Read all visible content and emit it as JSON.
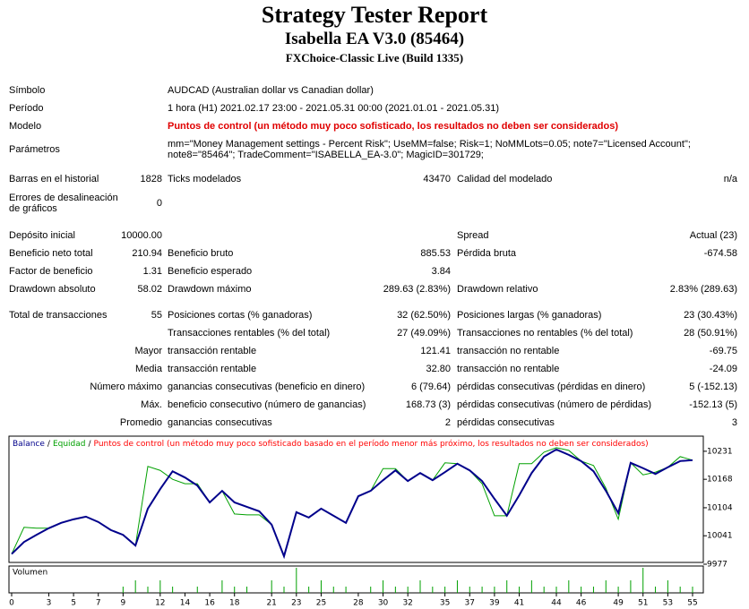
{
  "header": {
    "title": "Strategy Tester Report",
    "subtitle": "Isabella EA V3.0 (85464)",
    "build": "FXChoice-Classic Live (Build 1335)"
  },
  "summary": [
    [
      "Símbolo",
      "AUDCAD (Australian dollar vs Canadian dollar)"
    ],
    [
      "Período",
      "1 hora (H1) 2021.02.17 23:00 - 2021.05.31 00:00 (2021.01.01 - 2021.05.31)"
    ],
    [
      "Modelo",
      "Puntos de control (un método muy poco sofisticado, los resultados no deben ser considerados)"
    ],
    [
      "Parámetros",
      "mm=\"Money Management settings - Percent Risk\"; UseMM=false; Risk=1; NoMMLots=0.05; note7=\"Licensed Account\"; note8=\"85464\"; TradeComment=\"ISABELLA_EA-3.0\"; MagicID=301729;"
    ]
  ],
  "stats": [
    [
      "Barras en el historial",
      "1828",
      "Ticks modelados",
      "43470",
      "Calidad del modelado",
      "n/a"
    ],
    [
      "Errores de desalineación de gráficos",
      "0",
      null,
      null,
      null,
      null
    ],
    [
      "Depósito inicial",
      "10000.00",
      null,
      null,
      "Spread",
      "Actual (23)"
    ],
    [
      "Beneficio neto total",
      "210.94",
      "Beneficio bruto",
      "885.53",
      "Pérdida bruta",
      "-674.58"
    ],
    [
      "Factor de beneficio",
      "1.31",
      "Beneficio esperado",
      "3.84",
      null,
      null
    ],
    [
      "Drawdown absoluto",
      "58.02",
      "Drawdown máximo",
      "289.63 (2.83%)",
      "Drawdown relativo",
      "2.83% (289.63)"
    ],
    [
      "Total de transacciones",
      "55",
      "Posiciones cortas (% ganadoras)",
      "32 (62.50%)",
      "Posiciones largas (% ganadoras)",
      "23 (30.43%)"
    ],
    [
      null,
      null,
      "Transacciones rentables (% del total)",
      "27 (49.09%)",
      "Transacciones no rentables (% del total)",
      "28 (50.91%)"
    ],
    [
      null,
      "Mayor",
      "transacción rentable",
      "121.41",
      "transacción no rentable",
      "-69.75"
    ],
    [
      null,
      "Media",
      "transacción rentable",
      "32.80",
      "transacción no rentable",
      "-24.09"
    ],
    [
      null,
      "Número máximo",
      "ganancias consecutivas (beneficio en dinero)",
      "6 (79.64)",
      "pérdidas consecutivas (pérdidas en dinero)",
      "5 (-152.13)"
    ],
    [
      null,
      "Máx.",
      "beneficio consecutivo (número de ganancias)",
      "168.73 (3)",
      "pérdidas consecutivas (número de pérdidas)",
      "-152.13 (5)"
    ],
    [
      null,
      "Promedio",
      "ganancias consecutivas",
      "2",
      "pérdidas consecutivas",
      "3"
    ]
  ],
  "chart_data": {
    "type": "line",
    "legend_separator": "/",
    "note": "Puntos de control (un método muy poco sofisticado basado en el período menor más próximo, los resultados no deben ser considerados)",
    "note_color": "#ff0000",
    "x": [
      0,
      1,
      2,
      3,
      4,
      5,
      6,
      7,
      8,
      9,
      10,
      11,
      12,
      13,
      14,
      15,
      16,
      17,
      18,
      19,
      20,
      21,
      22,
      23,
      24,
      25,
      26,
      27,
      28,
      29,
      30,
      31,
      32,
      33,
      34,
      35,
      36,
      37,
      38,
      39,
      40,
      41,
      42,
      43,
      44,
      45,
      46,
      47,
      48,
      49,
      50,
      51,
      52,
      53,
      54,
      55
    ],
    "xlim": [
      0,
      55
    ],
    "xticks": [
      0,
      3,
      5,
      7,
      9,
      12,
      14,
      16,
      18,
      21,
      23,
      25,
      28,
      30,
      32,
      35,
      37,
      39,
      41,
      44,
      46,
      49,
      51,
      53,
      55
    ],
    "ylim": [
      9977,
      10265
    ],
    "yticks": [
      10231,
      10168,
      10104,
      10041,
      9977
    ],
    "series": [
      {
        "name": "Balance",
        "color": "#00008b",
        "values": [
          10000,
          10027,
          10043,
          10058,
          10070,
          10078,
          10084,
          10072,
          10054,
          10043,
          10019,
          10102,
          10146,
          10186,
          10172,
          10154,
          10116,
          10142,
          10116,
          10106,
          10096,
          10066,
          9995,
          10094,
          10082,
          10102,
          10086,
          10070,
          10130,
          10142,
          10166,
          10188,
          10164,
          10182,
          10166,
          10184,
          10203,
          10188,
          10164,
          10124,
          10086,
          10132,
          10182,
          10219,
          10235,
          10223,
          10209,
          10186,
          10142,
          10092,
          10205,
          10193,
          10180,
          10195,
          10209,
          10211
        ]
      },
      {
        "name": "Equidad",
        "color": "#00a000",
        "values": [
          10000,
          10060,
          10058,
          10058,
          10070,
          10078,
          10084,
          10072,
          10054,
          10043,
          10019,
          10197,
          10188,
          10168,
          10158,
          10158,
          10116,
          10142,
          10090,
          10088,
          10088,
          10066,
          9995,
          10094,
          10082,
          10102,
          10086,
          10070,
          10130,
          10142,
          10192,
          10192,
          10164,
          10182,
          10166,
          10205,
          10203,
          10188,
          10158,
          10086,
          10086,
          10203,
          10203,
          10229,
          10239,
          10233,
          10209,
          10199,
          10148,
          10078,
          10205,
          10178,
          10184,
          10195,
          10219,
          10211
        ]
      }
    ],
    "volume": {
      "label": "Volumen",
      "color": "#00a000",
      "ylim": [
        0,
        4
      ],
      "values": [
        0,
        0,
        0,
        0,
        0,
        0,
        0,
        0,
        0,
        1,
        2,
        1,
        2,
        1,
        0,
        1,
        0,
        2,
        1,
        1,
        0,
        2,
        1,
        4,
        1,
        2,
        1,
        1,
        0,
        1,
        2,
        1,
        1,
        2,
        1,
        1,
        2,
        1,
        1,
        1,
        2,
        1,
        2,
        1,
        1,
        2,
        1,
        1,
        2,
        1,
        2,
        4,
        1,
        2,
        1,
        1
      ]
    }
  }
}
